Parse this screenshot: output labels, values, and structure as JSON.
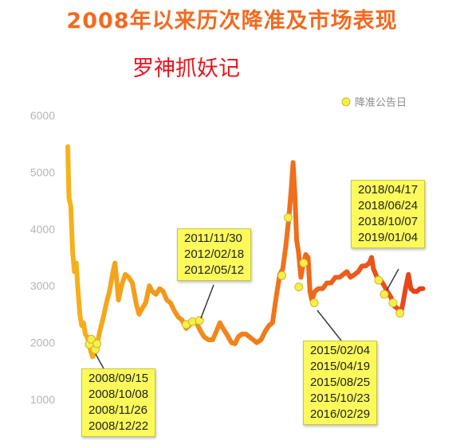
{
  "title": "2008年以来历次降准及市场表现",
  "subtitle": "罗神抓妖记",
  "colors": {
    "title": "#f26a21",
    "subtitle": "#e8141e",
    "line_start": "#f6b21a",
    "line_end": "#e8401a",
    "marker": "#f3f04a",
    "callout": "#fbfa5a"
  },
  "chart_data": {
    "type": "line",
    "title": "2008年以来历次降准及市场表现",
    "ylim": [
      0,
      6000
    ],
    "yticks": [
      1000,
      2000,
      3000,
      4000,
      5000,
      6000
    ],
    "grid": false,
    "legend": {
      "label": "降准公告日",
      "placement": "top-right"
    },
    "series": [
      {
        "name": "",
        "values": [
          [
            2008.0,
            5450
          ],
          [
            2008.04,
            4550
          ],
          [
            2008.1,
            4400
          ],
          [
            2008.16,
            3600
          ],
          [
            2008.22,
            3250
          ],
          [
            2008.28,
            3400
          ],
          [
            2008.34,
            2900
          ],
          [
            2008.4,
            2500
          ],
          [
            2008.46,
            2300
          ],
          [
            2008.52,
            2350
          ],
          [
            2008.58,
            2150
          ],
          [
            2008.64,
            2100
          ],
          [
            2008.7,
            2000
          ],
          [
            2008.76,
            1850
          ],
          [
            2008.82,
            1750
          ],
          [
            2008.88,
            1800
          ],
          [
            2008.96,
            1950
          ],
          [
            2009.06,
            2200
          ],
          [
            2009.18,
            2450
          ],
          [
            2009.28,
            2700
          ],
          [
            2009.38,
            2900
          ],
          [
            2009.48,
            3200
          ],
          [
            2009.56,
            3400
          ],
          [
            2009.62,
            3100
          ],
          [
            2009.68,
            2750
          ],
          [
            2009.78,
            3000
          ],
          [
            2009.9,
            3200
          ],
          [
            2010.02,
            3150
          ],
          [
            2010.14,
            3050
          ],
          [
            2010.26,
            2700
          ],
          [
            2010.36,
            2500
          ],
          [
            2010.46,
            2600
          ],
          [
            2010.58,
            2700
          ],
          [
            2010.7,
            3000
          ],
          [
            2010.8,
            2900
          ],
          [
            2010.92,
            2850
          ],
          [
            2011.04,
            2950
          ],
          [
            2011.16,
            2900
          ],
          [
            2011.28,
            2750
          ],
          [
            2011.4,
            2700
          ],
          [
            2011.54,
            2550
          ],
          [
            2011.66,
            2450
          ],
          [
            2011.78,
            2400
          ],
          [
            2011.92,
            2250
          ],
          [
            2012.02,
            2300
          ],
          [
            2012.14,
            2400
          ],
          [
            2012.26,
            2350
          ],
          [
            2012.4,
            2200
          ],
          [
            2012.52,
            2100
          ],
          [
            2012.66,
            2050
          ],
          [
            2012.8,
            2050
          ],
          [
            2012.92,
            2200
          ],
          [
            2013.04,
            2350
          ],
          [
            2013.14,
            2250
          ],
          [
            2013.26,
            2150
          ],
          [
            2013.42,
            2000
          ],
          [
            2013.54,
            1980
          ],
          [
            2013.64,
            2100
          ],
          [
            2013.76,
            2150
          ],
          [
            2013.9,
            2150
          ],
          [
            2014.02,
            2100
          ],
          [
            2014.14,
            2050
          ],
          [
            2014.26,
            2000
          ],
          [
            2014.4,
            2050
          ],
          [
            2014.54,
            2200
          ],
          [
            2014.66,
            2300
          ],
          [
            2014.78,
            2350
          ],
          [
            2014.9,
            2800
          ],
          [
            2015.02,
            3200
          ],
          [
            2015.12,
            3300
          ],
          [
            2015.22,
            3700
          ],
          [
            2015.32,
            4200
          ],
          [
            2015.4,
            4700
          ],
          [
            2015.46,
            5170
          ],
          [
            2015.52,
            4600
          ],
          [
            2015.58,
            3800
          ],
          [
            2015.64,
            3600
          ],
          [
            2015.72,
            3150
          ],
          [
            2015.8,
            3400
          ],
          [
            2015.88,
            3550
          ],
          [
            2015.96,
            3500
          ],
          [
            2016.02,
            2900
          ],
          [
            2016.08,
            2750
          ],
          [
            2016.18,
            2900
          ],
          [
            2016.3,
            2950
          ],
          [
            2016.44,
            2950
          ],
          [
            2016.58,
            3050
          ],
          [
            2016.72,
            3050
          ],
          [
            2016.86,
            3150
          ],
          [
            2017.0,
            3150
          ],
          [
            2017.12,
            3200
          ],
          [
            2017.24,
            3250
          ],
          [
            2017.36,
            3150
          ],
          [
            2017.5,
            3200
          ],
          [
            2017.62,
            3250
          ],
          [
            2017.74,
            3350
          ],
          [
            2017.86,
            3350
          ],
          [
            2017.98,
            3400
          ],
          [
            2018.06,
            3500
          ],
          [
            2018.12,
            3300
          ],
          [
            2018.24,
            3150
          ],
          [
            2018.36,
            3100
          ],
          [
            2018.48,
            3000
          ],
          [
            2018.58,
            2900
          ],
          [
            2018.7,
            2800
          ],
          [
            2018.8,
            2650
          ],
          [
            2018.92,
            2600
          ],
          [
            2019.02,
            2500
          ],
          [
            2019.1,
            2700
          ],
          [
            2019.2,
            3000
          ],
          [
            2019.28,
            3200
          ],
          [
            2019.36,
            2950
          ],
          [
            2019.46,
            2900
          ],
          [
            2019.56,
            2900
          ],
          [
            2019.66,
            2950
          ],
          [
            2019.76,
            2950
          ]
        ]
      }
    ],
    "events": [
      {
        "x": 2008.71,
        "y": 1970
      },
      {
        "x": 2008.78,
        "y": 2060
      },
      {
        "x": 2008.91,
        "y": 1880
      },
      {
        "x": 2008.97,
        "y": 1980
      },
      {
        "x": 2011.92,
        "y": 2320
      },
      {
        "x": 2012.13,
        "y": 2370
      },
      {
        "x": 2012.36,
        "y": 2390
      },
      {
        "x": 2015.09,
        "y": 3180
      },
      {
        "x": 2015.3,
        "y": 4200
      },
      {
        "x": 2015.65,
        "y": 2980
      },
      {
        "x": 2015.81,
        "y": 3400
      },
      {
        "x": 2016.16,
        "y": 2700
      },
      {
        "x": 2018.29,
        "y": 3100
      },
      {
        "x": 2018.48,
        "y": 2850
      },
      {
        "x": 2018.77,
        "y": 2700
      },
      {
        "x": 2019.0,
        "y": 2520
      }
    ],
    "annotations": [
      {
        "dates": [
          "2008/09/15",
          "2008/10/08",
          "2008/11/26",
          "2008/12/22"
        ]
      },
      {
        "dates": [
          "2011/11/30",
          "2012/02/18",
          "2012/05/12"
        ]
      },
      {
        "dates": [
          "2015/02/04",
          "2015/04/19",
          "2015/08/25",
          "2015/10/23",
          "2016/02/29"
        ]
      },
      {
        "dates": [
          "2018/04/17",
          "2018/06/24",
          "2018/10/07",
          "2019/01/04"
        ]
      }
    ]
  }
}
